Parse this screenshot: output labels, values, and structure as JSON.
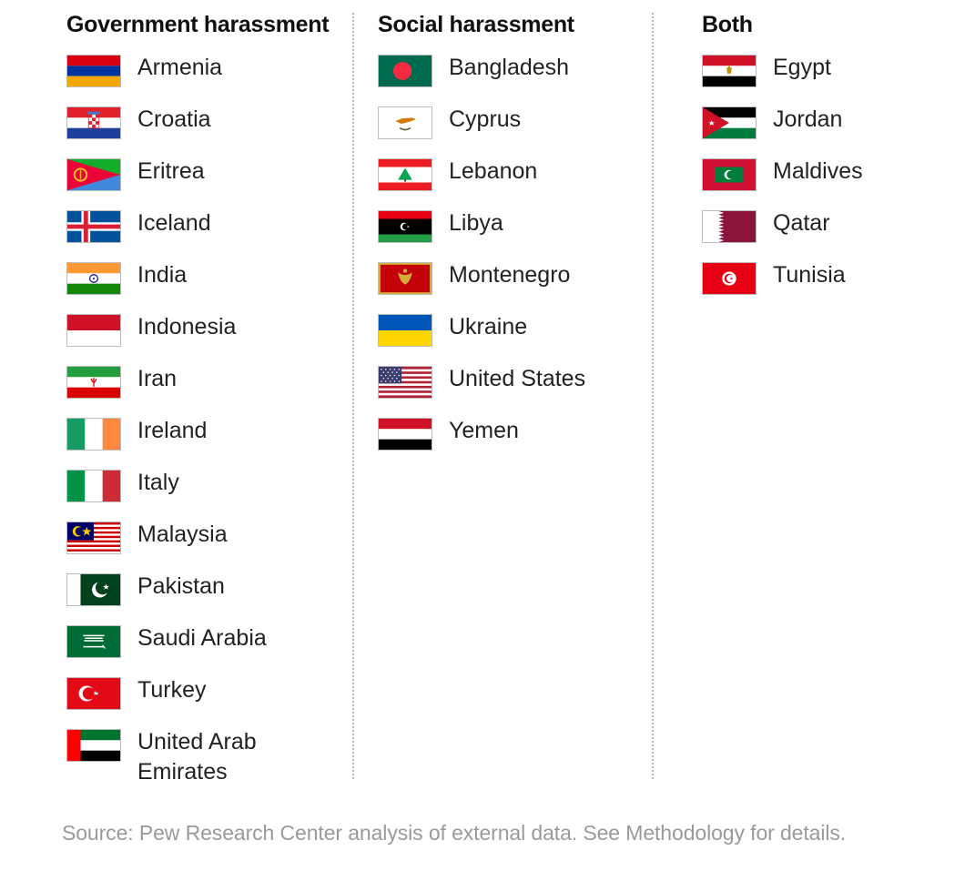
{
  "columns": [
    {
      "heading": "Government harassment",
      "countries": [
        {
          "name": "Armenia",
          "flag": "armenia-flag-icon"
        },
        {
          "name": "Croatia",
          "flag": "croatia-flag-icon"
        },
        {
          "name": "Eritrea",
          "flag": "eritrea-flag-icon"
        },
        {
          "name": "Iceland",
          "flag": "iceland-flag-icon"
        },
        {
          "name": "India",
          "flag": "india-flag-icon"
        },
        {
          "name": "Indonesia",
          "flag": "indonesia-flag-icon"
        },
        {
          "name": "Iran",
          "flag": "iran-flag-icon"
        },
        {
          "name": "Ireland",
          "flag": "ireland-flag-icon"
        },
        {
          "name": "Italy",
          "flag": "italy-flag-icon"
        },
        {
          "name": "Malaysia",
          "flag": "malaysia-flag-icon"
        },
        {
          "name": "Pakistan",
          "flag": "pakistan-flag-icon"
        },
        {
          "name": "Saudi Arabia",
          "flag": "saudi-arabia-flag-icon"
        },
        {
          "name": "Turkey",
          "flag": "turkey-flag-icon"
        },
        {
          "name": "United Arab\nEmirates",
          "flag": "uae-flag-icon"
        }
      ]
    },
    {
      "heading": "Social harassment",
      "countries": [
        {
          "name": "Bangladesh",
          "flag": "bangladesh-flag-icon"
        },
        {
          "name": "Cyprus",
          "flag": "cyprus-flag-icon"
        },
        {
          "name": "Lebanon",
          "flag": "lebanon-flag-icon"
        },
        {
          "name": "Libya",
          "flag": "libya-flag-icon"
        },
        {
          "name": "Montenegro",
          "flag": "montenegro-flag-icon"
        },
        {
          "name": "Ukraine",
          "flag": "ukraine-flag-icon"
        },
        {
          "name": "United States",
          "flag": "united-states-flag-icon"
        },
        {
          "name": "Yemen",
          "flag": "yemen-flag-icon"
        }
      ]
    },
    {
      "heading": "Both",
      "countries": [
        {
          "name": "Egypt",
          "flag": "egypt-flag-icon"
        },
        {
          "name": "Jordan",
          "flag": "jordan-flag-icon"
        },
        {
          "name": "Maldives",
          "flag": "maldives-flag-icon"
        },
        {
          "name": "Qatar",
          "flag": "qatar-flag-icon"
        },
        {
          "name": "Tunisia",
          "flag": "tunisia-flag-icon"
        }
      ]
    }
  ],
  "source": "Source: Pew Research Center analysis of external data. See Methodology for details."
}
